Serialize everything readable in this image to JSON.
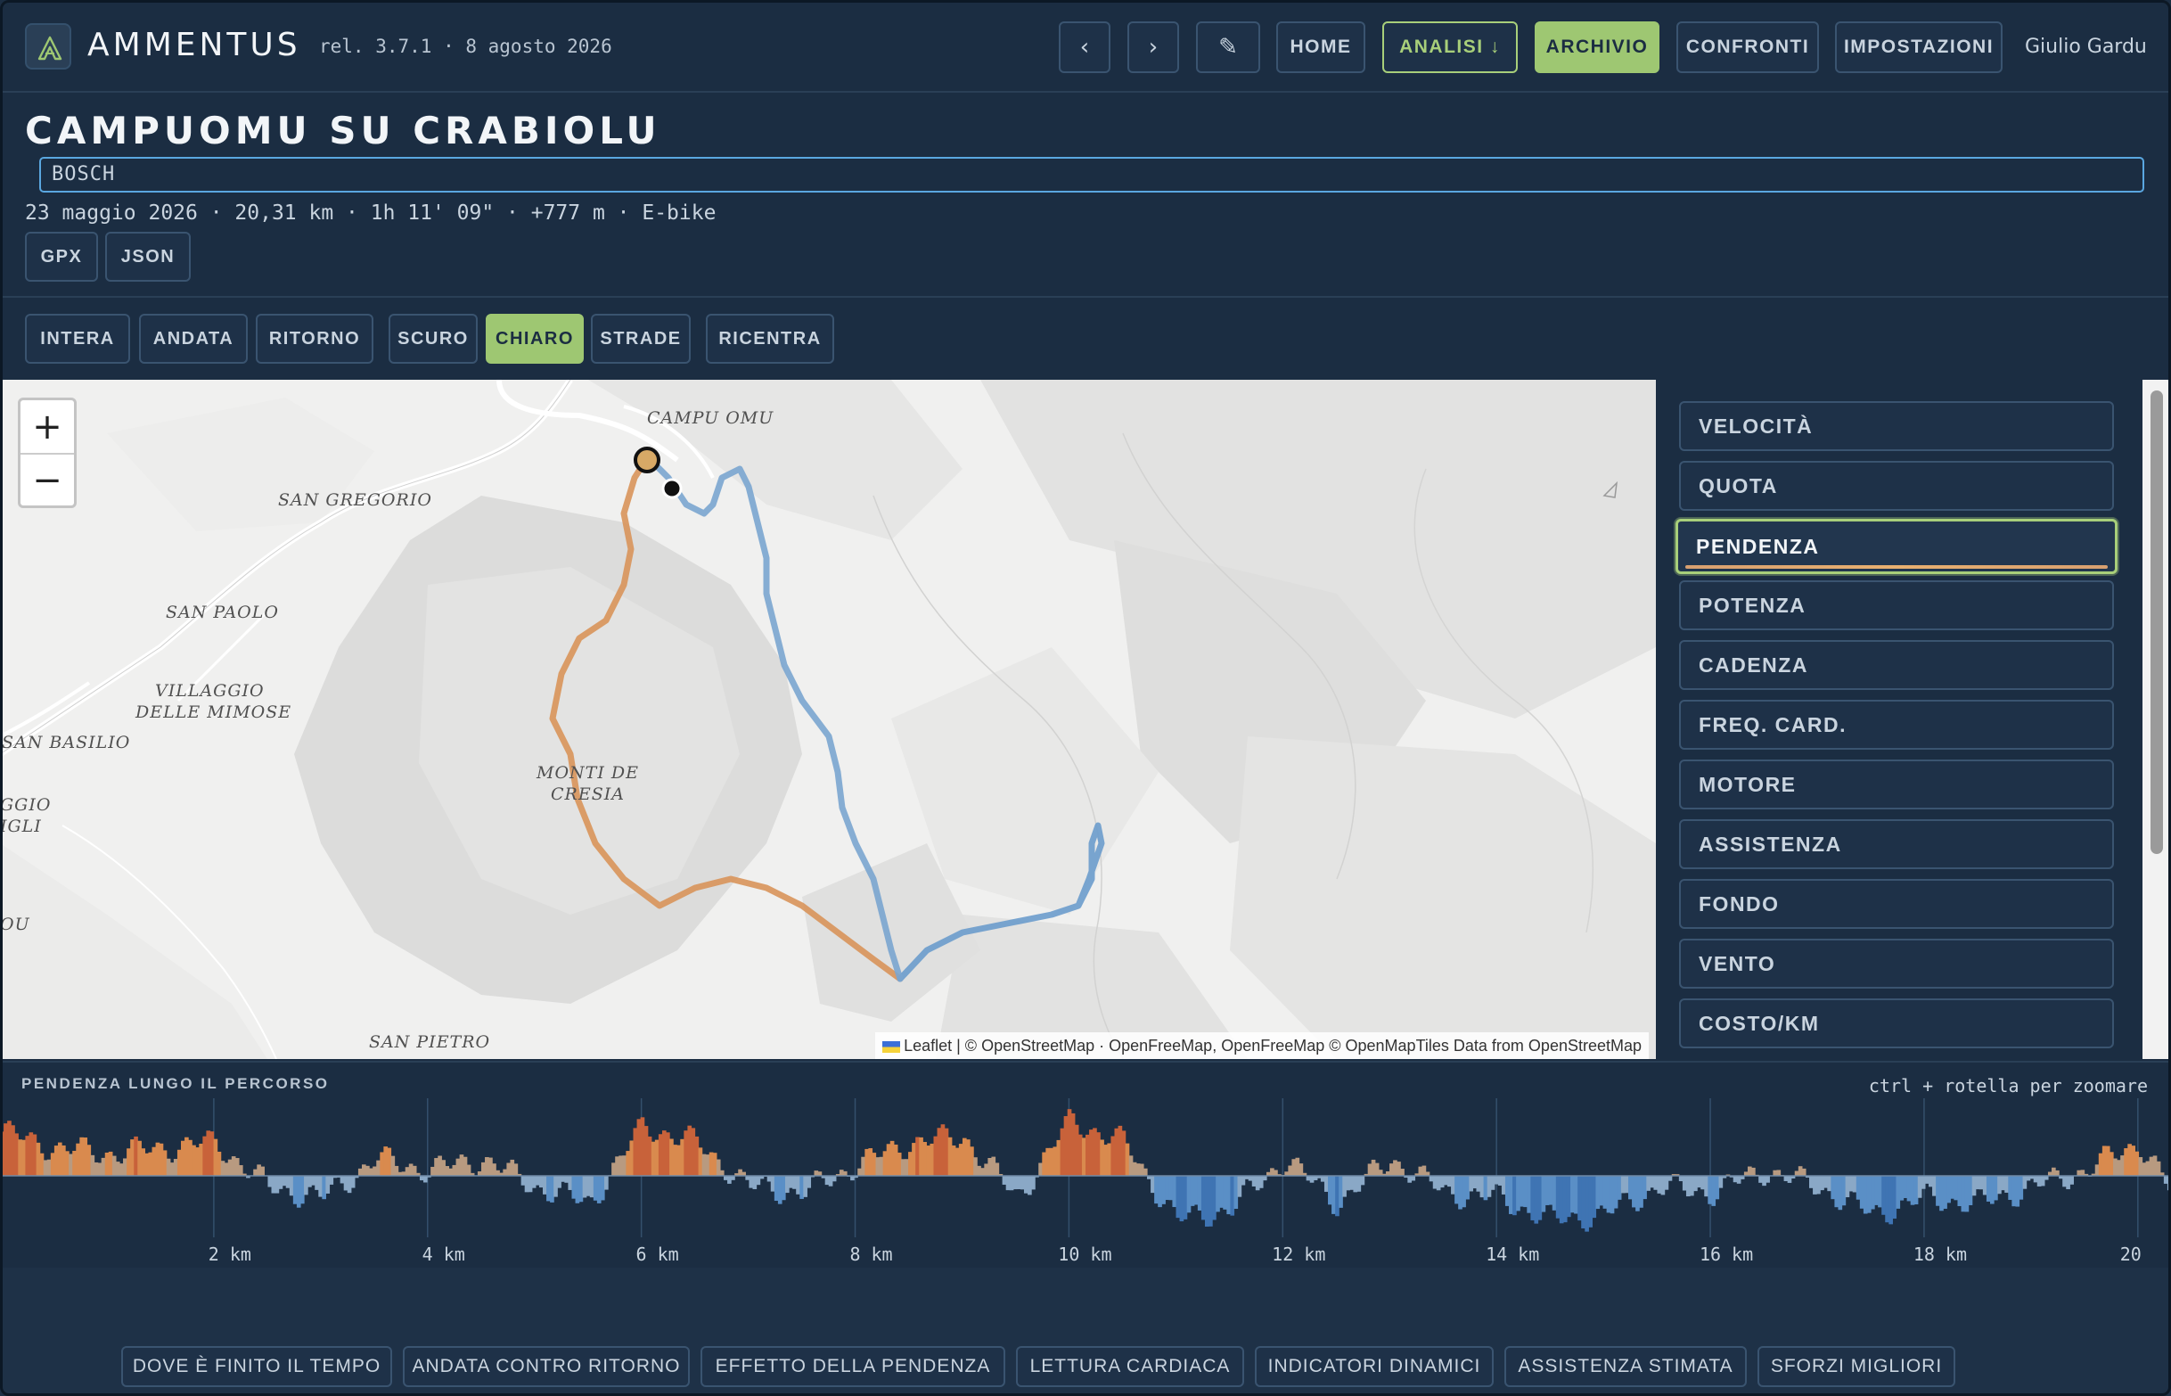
{
  "app": {
    "name": "AMMENTUS",
    "release": "rel. 3.7.1 · 8 agosto 2026",
    "user": "Giulio Gardu",
    "nav": {
      "prev": "‹",
      "next": "›",
      "edit": "✎",
      "home": "HOME",
      "analisi": "ANALISI ↓",
      "archivio": "ARCHIVIO",
      "confronti": "CONFRONTI",
      "impostazioni": "IMPOSTAZIONI"
    },
    "accent_color": "#9ec772"
  },
  "route": {
    "title": "CAMPUOMU SU CRABIOLU",
    "notes": "BOSCH",
    "meta": "23 maggio 2026 · 20,31 km · 1h 11' 09\" · +777 m · E-bike",
    "exports": [
      "GPX",
      "JSON"
    ]
  },
  "view_controls": {
    "segments": [
      "INTERA",
      "ANDATA",
      "RITORNO"
    ],
    "basemaps": [
      "SCURO",
      "CHIARO",
      "STRADE"
    ],
    "selected_basemap": "CHIARO",
    "recenter": "RICENTRA"
  },
  "map": {
    "places": [
      "CAMPU OMU",
      "SAN GREGORIO",
      "SAN PAOLO",
      "VILLAGGIO",
      "DELLE MIMOSE",
      "SAN BASILIO",
      "GGIO",
      "IGLI",
      "MONTI DE",
      "CRESIA",
      "OU",
      "SAN PIETRO"
    ],
    "zoom_in": "+",
    "zoom_out": "−",
    "attribution": "Leaflet | © OpenStreetMap · OpenFreeMap, OpenFreeMap © OpenMapTiles Data from OpenStreetMap"
  },
  "metrics": {
    "items": [
      "VELOCITÀ",
      "QUOTA",
      "PENDENZA",
      "POTENZA",
      "CADENZA",
      "FREQ. CARD.",
      "MOTORE",
      "ASSISTENZA",
      "FONDO",
      "VENTO",
      "COSTO/KM"
    ],
    "selected": "PENDENZA"
  },
  "profile": {
    "title": "PENDENZA LUNGO IL PERCORSO",
    "hint": "ctrl + rotella per zoomare",
    "x_ticks": [
      "2 km",
      "4 km",
      "6 km",
      "8 km",
      "10 km",
      "12 km",
      "14 km",
      "16 km",
      "18 km",
      "20"
    ]
  },
  "chart_data": {
    "type": "area",
    "title": "PENDENZA LUNGO IL PERCORSO",
    "xlabel": "",
    "ylabel": "",
    "x_unit": "km",
    "xlim": [
      0,
      20.31
    ],
    "x": [
      0,
      0.5,
      1,
      1.5,
      2,
      2.5,
      3,
      3.5,
      4,
      4.5,
      5,
      5.5,
      6,
      6.5,
      7,
      7.5,
      8,
      8.5,
      9,
      9.5,
      10,
      10.5,
      11,
      11.5,
      12,
      12.5,
      13,
      13.5,
      14,
      14.5,
      15,
      15.5,
      16,
      16.5,
      17,
      17.5,
      18,
      18.5,
      19,
      19.5,
      20,
      20.3
    ],
    "series": [
      {
        "values": [
          8,
          5,
          4,
          5,
          6,
          -2,
          -4,
          3,
          1,
          3,
          -2,
          -5,
          9,
          6,
          -2,
          -3,
          2,
          6,
          7,
          -4,
          10,
          6,
          -8,
          -6,
          3,
          -5,
          3,
          -3,
          -4,
          -8,
          -7,
          -2,
          -3,
          1,
          -2,
          -7,
          -4,
          -5,
          -2,
          1,
          6,
          -3
        ]
      }
    ],
    "colors": {
      "uphill": "#d98a4e",
      "downhill": "#5a8fc6"
    }
  },
  "analyses": {
    "buttons": [
      "DOVE È FINITO IL TEMPO",
      "ANDATA CONTRO RITORNO",
      "EFFETTO DELLA PENDENZA",
      "LETTURA CARDIACA",
      "INDICATORI DINAMICI",
      "ASSISTENZA STIMATA",
      "SFORZI MIGLIORI"
    ]
  }
}
